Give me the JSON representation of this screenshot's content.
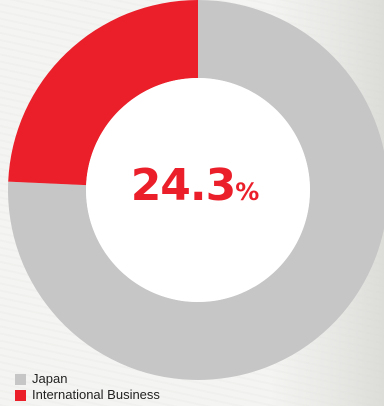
{
  "chart_data": {
    "type": "pie",
    "title": "",
    "categories": [
      "Japan",
      "International Business"
    ],
    "values": [
      75.7,
      24.3
    ],
    "colors": [
      "#c6c6c6",
      "#ea1f2a"
    ],
    "donut": true,
    "center_label": {
      "value": "24.3",
      "unit": "%"
    },
    "legend_placement": "bottom-left",
    "legend": [
      {
        "label": "Japan",
        "color": "#c6c6c6"
      },
      {
        "label": "International Business",
        "color": "#ea1f2a"
      }
    ]
  }
}
